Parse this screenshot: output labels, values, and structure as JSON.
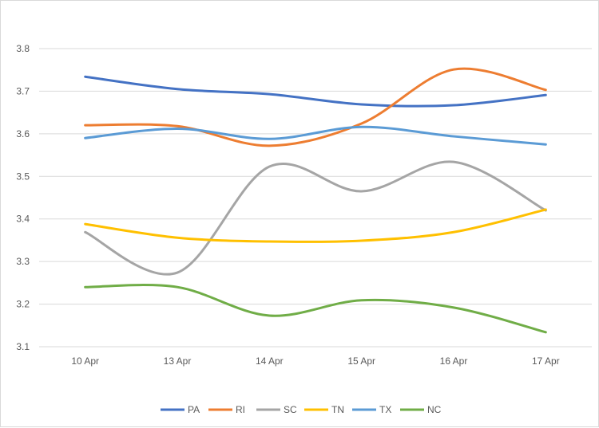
{
  "chart_data": {
    "type": "line",
    "title": "",
    "xlabel": "",
    "ylabel": "",
    "categories": [
      "10 Apr",
      "13 Apr",
      "14 Apr",
      "15 Apr",
      "16 Apr",
      "17 Apr"
    ],
    "ylim": [
      3.1,
      3.8
    ],
    "yticks": [
      "3.1",
      "3.2",
      "3.3",
      "3.4",
      "3.5",
      "3.6",
      "3.7",
      "3.8"
    ],
    "grid": true,
    "smooth": true,
    "legend_position": "bottom",
    "series": [
      {
        "name": "PA",
        "color": "#4472C4",
        "values": [
          3.734,
          3.705,
          3.693,
          3.669,
          3.667,
          3.691
        ]
      },
      {
        "name": "RI",
        "color": "#ED7D31",
        "values": [
          3.62,
          3.618,
          3.572,
          3.624,
          3.751,
          3.703
        ]
      },
      {
        "name": "SC",
        "color": "#A5A5A5",
        "values": [
          3.369,
          3.274,
          3.523,
          3.465,
          3.534,
          3.42
        ]
      },
      {
        "name": "TN",
        "color": "#FFC000",
        "values": [
          3.388,
          3.356,
          3.347,
          3.349,
          3.369,
          3.422
        ]
      },
      {
        "name": "TX",
        "color": "#5B9BD5",
        "values": [
          3.59,
          3.612,
          3.588,
          3.616,
          3.594,
          3.575
        ]
      },
      {
        "name": "NC",
        "color": "#70AD47",
        "values": [
          3.24,
          3.24,
          3.173,
          3.209,
          3.192,
          3.134
        ]
      }
    ]
  }
}
